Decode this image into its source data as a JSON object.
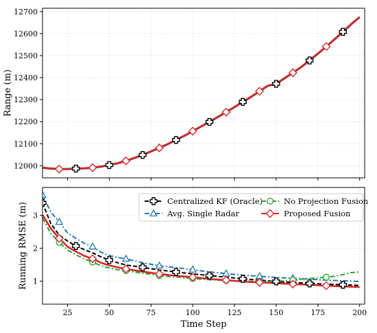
{
  "chart_data": [
    {
      "type": "line",
      "ylabel": "Range (m)",
      "xlim": [
        10,
        203
      ],
      "ylim": [
        11945,
        12715
      ],
      "xticks": [
        25,
        50,
        75,
        100,
        125,
        150,
        175,
        200
      ],
      "yticks": [
        12000,
        12100,
        12200,
        12300,
        12400,
        12500,
        12600,
        12700
      ],
      "grid": true,
      "series": [
        {
          "style": "true-range",
          "color": "#555555",
          "x": [
            10,
            15,
            20,
            25,
            30,
            35,
            40,
            45,
            50,
            55,
            60,
            65,
            70,
            75,
            80,
            85,
            90,
            95,
            100,
            105,
            110,
            115,
            120,
            125,
            130,
            135,
            140,
            145,
            150,
            155,
            160,
            165,
            170,
            175,
            180,
            185,
            190,
            195,
            200
          ],
          "y": [
            11991,
            11987,
            11985,
            11985,
            11987,
            11988,
            11991,
            11996,
            12003,
            12011,
            12022,
            12035,
            12049,
            12065,
            12081,
            12098,
            12117,
            12136,
            12157,
            12178,
            12199,
            12221,
            12243,
            12266,
            12290,
            12313,
            12338,
            12363,
            12372,
            12397,
            12422,
            12448,
            12478,
            12509,
            12541,
            12574,
            12608,
            12643,
            12675
          ]
        },
        {
          "name": "Centralized KF (Oracle)",
          "color": "#000000",
          "marker": "plus",
          "x": [
            10,
            15,
            20,
            25,
            30,
            35,
            40,
            45,
            50,
            55,
            60,
            65,
            70,
            75,
            80,
            85,
            90,
            95,
            100,
            105,
            110,
            115,
            120,
            125,
            130,
            135,
            140,
            145,
            150,
            155,
            160,
            165,
            170,
            175,
            180,
            185,
            190,
            195,
            200
          ],
          "y": [
            11991,
            11987,
            11985,
            11985,
            11987,
            11988,
            11991,
            11996,
            12003,
            12011,
            12022,
            12035,
            12049,
            12065,
            12081,
            12098,
            12117,
            12136,
            12157,
            12178,
            12199,
            12221,
            12243,
            12266,
            12290,
            12313,
            12338,
            12363,
            12372,
            12397,
            12422,
            12448,
            12478,
            12509,
            12541,
            12574,
            12608,
            12643,
            12675
          ],
          "marker_x": [
            30,
            50,
            70,
            90,
            110,
            130,
            150,
            170,
            190
          ]
        },
        {
          "name": "Proposed Fusion",
          "color": "#d62728",
          "marker": "diamond",
          "x": [
            10,
            15,
            20,
            25,
            30,
            35,
            40,
            45,
            50,
            55,
            60,
            65,
            70,
            75,
            80,
            85,
            90,
            95,
            100,
            105,
            110,
            115,
            120,
            125,
            130,
            135,
            140,
            145,
            150,
            155,
            160,
            165,
            170,
            175,
            180,
            185,
            190,
            195,
            200
          ],
          "y": [
            11991,
            11987,
            11985,
            11985,
            11987,
            11988,
            11991,
            11996,
            12003,
            12011,
            12022,
            12035,
            12049,
            12065,
            12081,
            12098,
            12117,
            12136,
            12157,
            12178,
            12199,
            12221,
            12243,
            12266,
            12290,
            12313,
            12338,
            12363,
            12372,
            12397,
            12422,
            12448,
            12478,
            12509,
            12541,
            12574,
            12608,
            12643,
            12675
          ],
          "marker_x": [
            20,
            40,
            60,
            80,
            100,
            120,
            140,
            160,
            180
          ]
        }
      ]
    },
    {
      "type": "line",
      "xlabel": "Time Step",
      "ylabel": "Running RMSE (m)",
      "xlim": [
        10,
        203
      ],
      "ylim": [
        0.3,
        3.85
      ],
      "xticks": [
        25,
        50,
        75,
        100,
        125,
        150,
        175,
        200
      ],
      "yticks": [
        1,
        2,
        3
      ],
      "grid": true,
      "legend": "top-right",
      "series": [
        {
          "name": "Centralized KF (Oracle)",
          "color": "#000000",
          "dash": "6,3",
          "marker": "plus",
          "x": [
            10,
            15,
            20,
            25,
            30,
            35,
            40,
            45,
            50,
            55,
            60,
            70,
            80,
            90,
            100,
            110,
            120,
            130,
            140,
            150,
            160,
            170,
            180,
            190,
            200
          ],
          "y": [
            3.38,
            2.75,
            2.4,
            2.22,
            2.07,
            1.96,
            1.86,
            1.74,
            1.64,
            1.56,
            1.49,
            1.42,
            1.34,
            1.28,
            1.22,
            1.17,
            1.12,
            1.07,
            1.03,
            0.99,
            0.96,
            0.93,
            0.91,
            0.89,
            0.87
          ],
          "marker_x": [
            10,
            30,
            50,
            70,
            90,
            110,
            130,
            150,
            170,
            190
          ]
        },
        {
          "name": "Avg. Single Radar",
          "color": "#1f77b4",
          "dash": "7,3,2,3",
          "marker": "triangle",
          "x": [
            10,
            15,
            20,
            25,
            30,
            35,
            40,
            45,
            50,
            55,
            60,
            70,
            80,
            90,
            100,
            110,
            120,
            130,
            140,
            150,
            160,
            170,
            180,
            190,
            200
          ],
          "y": [
            3.62,
            3.1,
            2.8,
            2.47,
            2.3,
            2.15,
            2.05,
            1.88,
            1.78,
            1.72,
            1.68,
            1.56,
            1.47,
            1.41,
            1.35,
            1.28,
            1.23,
            1.18,
            1.15,
            1.11,
            1.09,
            1.06,
            1.03,
            1.01,
            0.99
          ],
          "marker_x": [
            10,
            20,
            40,
            60,
            80,
            100,
            120,
            140,
            160
          ]
        },
        {
          "name": "No Projection Fusion",
          "color": "#2ca02c",
          "dash": "7,3,2,3",
          "marker": "circle",
          "x": [
            10,
            15,
            20,
            25,
            30,
            35,
            40,
            45,
            50,
            55,
            60,
            70,
            80,
            90,
            100,
            110,
            120,
            130,
            140,
            150,
            160,
            165,
            170,
            175,
            180,
            185,
            190,
            195,
            200
          ],
          "y": [
            2.92,
            2.45,
            2.18,
            1.95,
            1.8,
            1.68,
            1.58,
            1.47,
            1.4,
            1.35,
            1.32,
            1.24,
            1.17,
            1.13,
            1.08,
            1.04,
            1.02,
            1.0,
            0.99,
            0.99,
            1.03,
            1.06,
            1.08,
            1.1,
            1.12,
            1.15,
            1.2,
            1.26,
            1.28
          ],
          "marker_x": [
            20,
            40,
            60,
            80,
            100,
            120,
            140,
            160,
            180
          ]
        },
        {
          "name": "Proposed Fusion",
          "color": "#d62728",
          "dash": "",
          "marker": "diamond",
          "x": [
            10,
            15,
            20,
            25,
            30,
            35,
            40,
            45,
            50,
            55,
            60,
            70,
            80,
            90,
            100,
            110,
            120,
            130,
            140,
            150,
            160,
            170,
            180,
            190,
            200
          ],
          "y": [
            3.02,
            2.6,
            2.3,
            2.05,
            1.9,
            1.77,
            1.68,
            1.56,
            1.48,
            1.42,
            1.37,
            1.29,
            1.22,
            1.16,
            1.12,
            1.07,
            1.03,
            0.99,
            0.96,
            0.94,
            0.91,
            0.89,
            0.86,
            0.84,
            0.82
          ],
          "marker_x": [
            20,
            40,
            60,
            80,
            100,
            120,
            140,
            160,
            180
          ]
        }
      ]
    }
  ]
}
